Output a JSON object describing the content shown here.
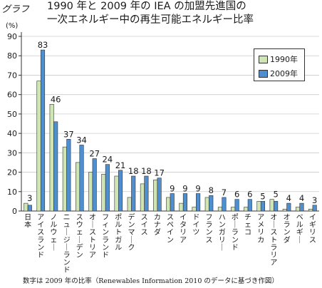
{
  "header": {
    "graph_label": "グラフ",
    "title_line1": "1990 年と 2009 年の IEA の加盟先進国の",
    "title_line2": "一次エネルギー中の再生可能エネルギー比率"
  },
  "footnote": "数字は 2009 年の比率（Renewables Information 2010 のデータに基づき作図）",
  "colors": {
    "s1990": "#cfe6b4",
    "s2009": "#4f8fcf",
    "axis": "#333333",
    "grid": "#cccccc"
  },
  "chart_data": {
    "type": "bar",
    "unit_label": "(%)",
    "ylim": [
      0,
      90
    ],
    "yticks": [
      0,
      10,
      20,
      30,
      40,
      50,
      60,
      70,
      80,
      90
    ],
    "grid": true,
    "legend_position": "top-right",
    "categories": [
      "日本",
      "アイスランド",
      "ノルウェー",
      "ニュージーランド",
      "スウェーデン",
      "オーストリア",
      "フィンランド",
      "ポルトガル",
      "デンマーク",
      "スイス",
      "カナダ",
      "スペイン",
      "イタリア",
      "ドイツ",
      "フランス",
      "ハンガリー",
      "ポーランド",
      "チェコ",
      "アメリカ",
      "オーストラリア",
      "オランダ",
      "ベルギー",
      "イギリス"
    ],
    "series": [
      {
        "name": "1990年",
        "values": [
          4,
          67,
          55,
          33,
          25,
          20,
          19,
          18,
          7,
          14,
          16,
          7,
          4,
          2,
          7,
          2,
          2,
          2,
          5,
          6,
          1,
          2,
          1
        ]
      },
      {
        "name": "2009年",
        "values": [
          3,
          83,
          46,
          37,
          34,
          27,
          24,
          21,
          18,
          18,
          17,
          9,
          9,
          9,
          8,
          7,
          6,
          6,
          5,
          5,
          4,
          4,
          3
        ]
      }
    ],
    "data_labels": [
      "3",
      "83",
      "46",
      "37",
      "34",
      "27",
      "24",
      "21",
      "18",
      "18",
      "17",
      "9",
      "9",
      "9",
      "8",
      "7",
      "6",
      "6",
      "5",
      "5",
      "4",
      "4",
      "3"
    ]
  }
}
